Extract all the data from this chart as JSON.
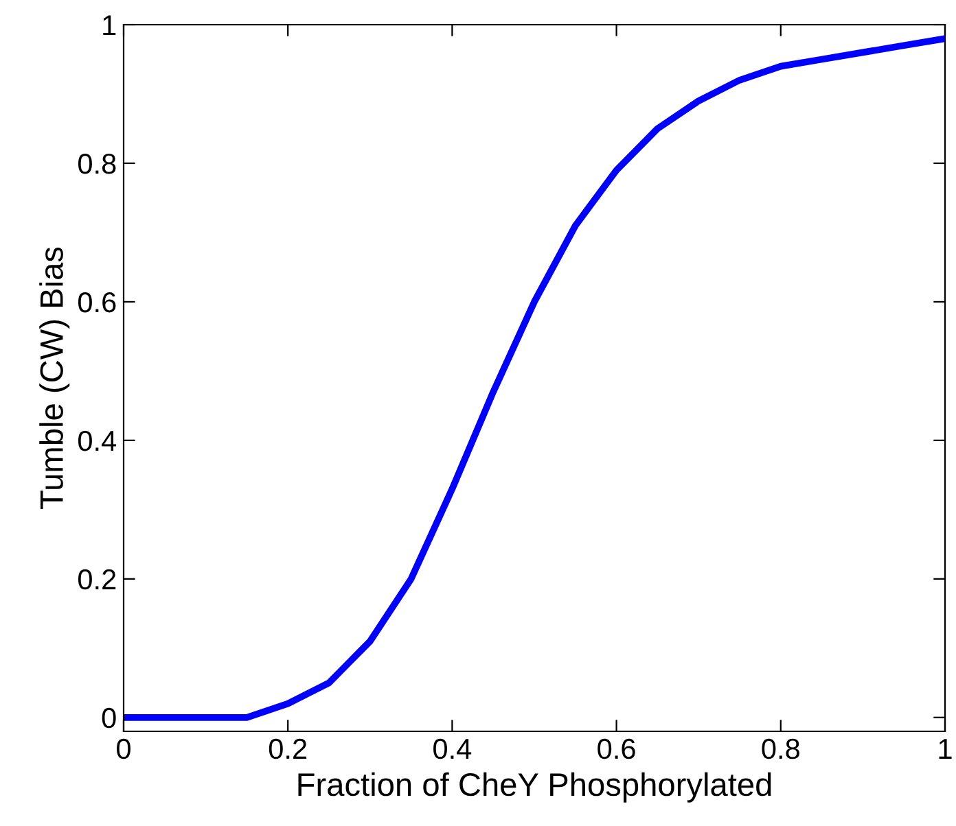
{
  "chart_data": {
    "type": "line",
    "xlabel": "Fraction of CheY Phosphorylated",
    "ylabel": "Tumble (CW) Bias",
    "x": [
      0,
      0.05,
      0.1,
      0.15,
      0.2,
      0.25,
      0.3,
      0.35,
      0.4,
      0.45,
      0.5,
      0.55,
      0.6,
      0.65,
      0.7,
      0.75,
      0.8,
      0.85,
      0.9,
      0.95,
      1
    ],
    "series": [
      {
        "color": "#0000ff",
        "values": [
          0,
          0,
          0,
          0,
          0.02,
          0.05,
          0.11,
          0.2,
          0.33,
          0.47,
          0.6,
          0.71,
          0.79,
          0.85,
          0.89,
          0.92,
          0.94,
          0.95,
          0.96,
          0.97,
          0.98
        ]
      }
    ],
    "xlim": [
      0,
      1
    ],
    "ylim": [
      -0.02,
      1
    ],
    "xticks": [
      0,
      0.2,
      0.4,
      0.6,
      0.8,
      1
    ],
    "yticks": [
      0,
      0.2,
      0.4,
      0.6,
      0.8,
      1
    ],
    "grid": false,
    "legend": false,
    "marker": "none",
    "line_style": "solid"
  }
}
